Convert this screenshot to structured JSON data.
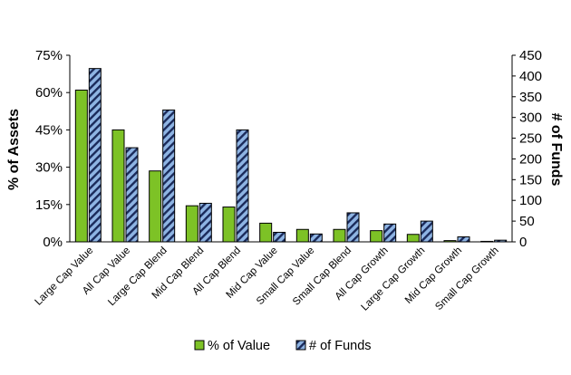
{
  "chart_data": {
    "type": "bar",
    "categories": [
      "Large Cap Value",
      "All Cap Value",
      "Large Cap Blend",
      "Mid Cap Blend",
      "All Cap Blend",
      "Mid Cap Value",
      "Small Cap Value",
      "Small Cap Blend",
      "All Cap Growth",
      "Large Cap Growth",
      "Mid Cap Growth",
      "Small Cap Growth"
    ],
    "series": [
      {
        "name": "% of Value",
        "axis": "left",
        "color": "#7DC226",
        "pattern": "solid",
        "values": [
          61,
          45,
          28.5,
          14.5,
          14,
          7.5,
          5,
          5,
          4.5,
          3,
          0.5,
          0.2
        ]
      },
      {
        "name": "# of Funds",
        "axis": "right",
        "color": "#8EB4E3",
        "pattern": "diagonal-stripes",
        "values": [
          418,
          227,
          318,
          93,
          270,
          23,
          19,
          70,
          43,
          50,
          12,
          4
        ]
      }
    ],
    "ylabel": "% of Assets",
    "ylabel_right": "# of Funds",
    "ylim": [
      0,
      75
    ],
    "ylim_right": [
      0,
      450
    ],
    "yticks": [
      "0%",
      "15%",
      "30%",
      "45%",
      "60%",
      "75%"
    ],
    "yticks_right": [
      "0",
      "50",
      "100",
      "150",
      "200",
      "250",
      "300",
      "350",
      "400",
      "450"
    ],
    "grid": false,
    "legend_position": "bottom"
  }
}
